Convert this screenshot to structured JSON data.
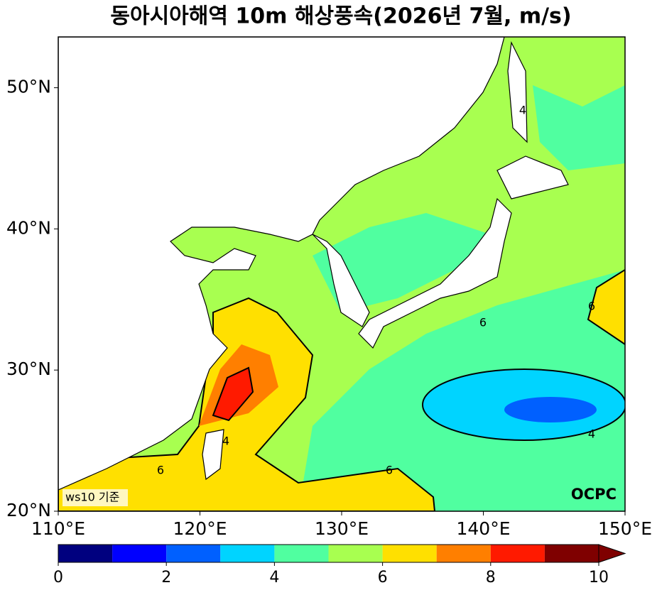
{
  "title": "동아시아해역 10m 해상풍속(2026년 7월, m/s)",
  "map": {
    "xlim": [
      110,
      150
    ],
    "ylim": [
      20,
      53.6
    ],
    "xticks": [
      {
        "value": 110,
        "label": "110°E"
      },
      {
        "value": 120,
        "label": "120°E"
      },
      {
        "value": 130,
        "label": "130°E"
      },
      {
        "value": 140,
        "label": "140°E"
      },
      {
        "value": 150,
        "label": "150°E"
      }
    ],
    "yticks": [
      {
        "value": 20,
        "label": "20°N"
      },
      {
        "value": 30,
        "label": "30°N"
      },
      {
        "value": 40,
        "label": "40°N"
      },
      {
        "value": 50,
        "label": "50°N"
      }
    ],
    "contour_labels": [
      "6",
      "4",
      "6",
      "4",
      "6",
      "6",
      "4"
    ],
    "note": "ws10 기준",
    "source": "OCPC"
  },
  "colorbar": {
    "levels": [
      0,
      1,
      2,
      3,
      4,
      5,
      6,
      7,
      8,
      9,
      10
    ],
    "colors": [
      "#00007f",
      "#0000ff",
      "#0060ff",
      "#00d4ff",
      "#50ffa0",
      "#a8ff50",
      "#ffe000",
      "#ff7f00",
      "#ff1a00",
      "#7f0000"
    ],
    "ticks": [
      0,
      2,
      4,
      6,
      8,
      10
    ]
  }
}
